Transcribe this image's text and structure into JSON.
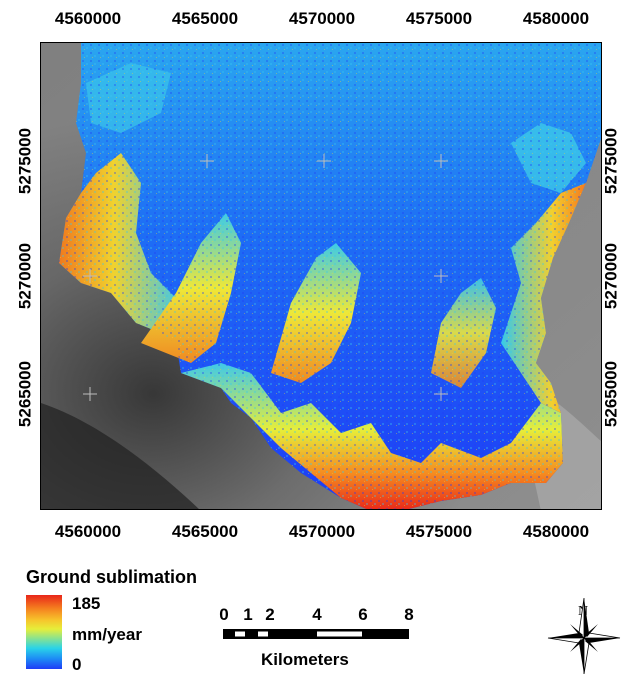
{
  "map": {
    "x_ticks": [
      "4560000",
      "4565000",
      "4570000",
      "4575000",
      "4580000"
    ],
    "y_ticks": [
      "5275000",
      "5270000",
      "5265000"
    ],
    "background": "shaded-relief hillshade (grayscale) with colour-ramp raster overlay",
    "colors": {
      "low": "#1e3cf6",
      "mid": "#e6ee3a",
      "high": "#e8261a",
      "hillshade": "#5a5a5a"
    }
  },
  "legend": {
    "title": "Ground sublimation",
    "max_label": "185",
    "unit_label": "mm/year",
    "min_label": "0"
  },
  "scale_bar": {
    "ticks": [
      "0",
      "1",
      "2",
      "4",
      "6",
      "8"
    ],
    "units": "Kilometers"
  },
  "north_arrow": {
    "letter": "N",
    "icon": "compass-rose-icon"
  }
}
